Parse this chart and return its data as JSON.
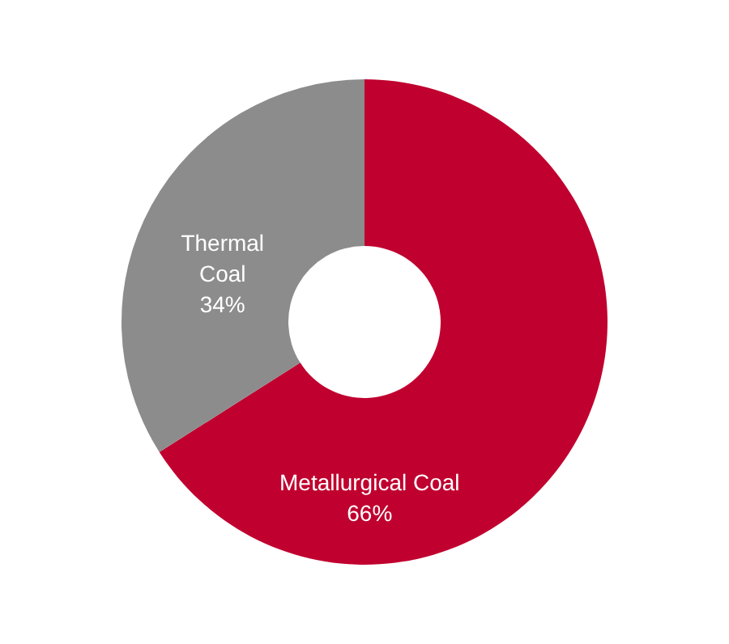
{
  "chart_data": {
    "type": "donut",
    "categories": [
      "Metallurgical Coal",
      "Thermal Coal"
    ],
    "values": [
      66,
      34
    ],
    "value_labels": [
      "66%",
      "34%"
    ],
    "colors": [
      "#c0002f",
      "#8c8c8c"
    ]
  }
}
